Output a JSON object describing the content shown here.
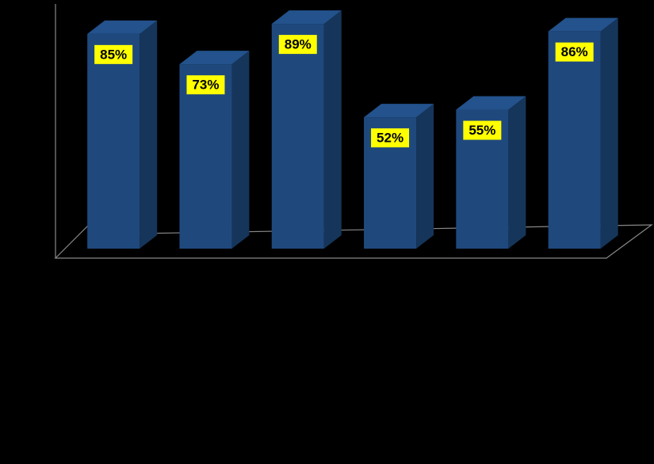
{
  "chart_data": {
    "type": "bar3d",
    "categories": [
      null,
      null,
      null,
      null,
      null,
      null
    ],
    "values": [
      85,
      73,
      89,
      52,
      55,
      86
    ],
    "value_labels": [
      "85%",
      "73%",
      "89%",
      "52%",
      "55%",
      "86%"
    ],
    "color": "#1f497d",
    "ylim": [
      0,
      100
    ]
  }
}
